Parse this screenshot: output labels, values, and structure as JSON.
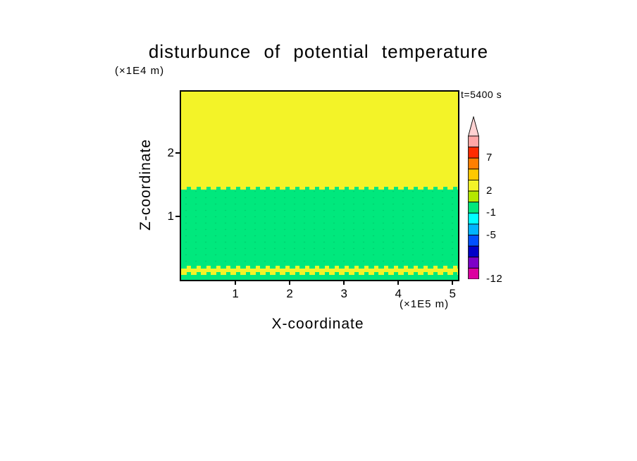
{
  "chart_data": {
    "type": "heatmap",
    "title": "disturbunce of potential temperature",
    "time_label": "t=5400 s",
    "xlabel": "X-coordinate",
    "ylabel": "Z-coordinate",
    "x_units": "(×1E5 m)",
    "y_units": "(×1E4 m)",
    "xlim": [
      0,
      5.1
    ],
    "zlim": [
      0,
      2.97
    ],
    "x_ticks": [
      1,
      2,
      3,
      4,
      5
    ],
    "y_ticks": [
      1,
      2
    ],
    "grid": false,
    "legend_position": "right-colorbar",
    "regions": [
      {
        "z_top": 2.97,
        "z_bottom": 1.45,
        "color": "#f3f328",
        "approx_value": "2 to 3",
        "description": "upper yellow band of weak positive disturbance"
      },
      {
        "z_top": 1.45,
        "z_bottom": 0.2,
        "color": "#00e87d",
        "speckle": true,
        "approx_value": "-1 to 0",
        "description": "middle green band of near-zero disturbance"
      },
      {
        "z_top": 0.2,
        "z_bottom": 0.1,
        "color": "#f3f328",
        "approx_value": "2 to 3",
        "description": "thin yellow stripe near surface"
      },
      {
        "z_top": 0.1,
        "z_bottom": 0.0,
        "color": "#00e87d",
        "approx_value": "-1 to 0",
        "description": "thin green layer at surface"
      }
    ],
    "colorbar": {
      "tip_color": "#ffd2d2",
      "segments": [
        "#ffa6a6",
        "#ff2a00",
        "#ff7f00",
        "#ffc800",
        "#f3f328",
        "#b4e800",
        "#00e87d",
        "#00ffff",
        "#00b4ff",
        "#0050ff",
        "#0000c8",
        "#7d00c8",
        "#dc00a0"
      ],
      "labels": [
        {
          "text": "7",
          "after_segment": 2
        },
        {
          "text": "2",
          "after_segment": 5
        },
        {
          "text": "-1",
          "after_segment": 7
        },
        {
          "text": "-5",
          "after_segment": 9
        },
        {
          "text": "-12",
          "after_segment": 13
        }
      ]
    }
  }
}
